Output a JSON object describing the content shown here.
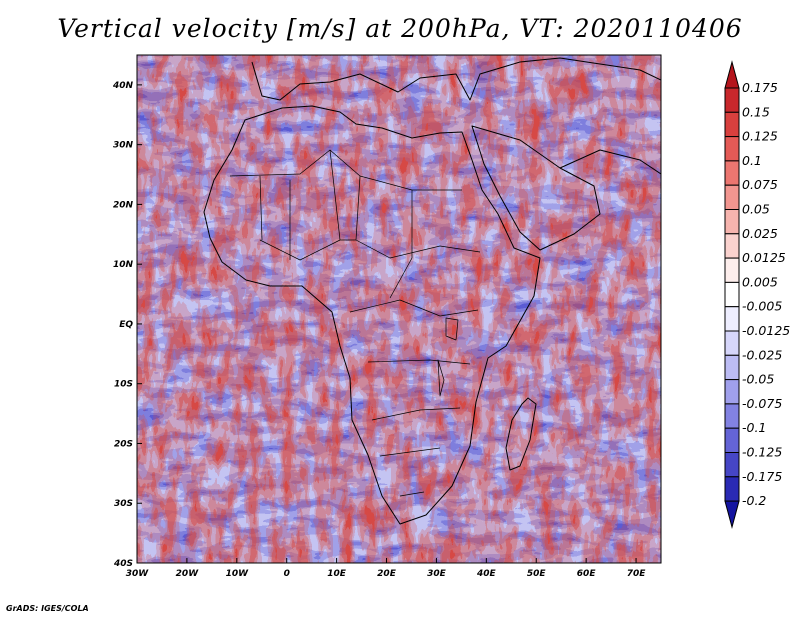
{
  "title": "Vertical velocity [m/s] at 200hPa, VT: 2020110406",
  "credit": "GrADS: IGES/COLA",
  "map": {
    "variable": "Vertical velocity",
    "units": "m/s",
    "level": "200hPa",
    "valid_time": "2020110406",
    "lon_range": [
      -30,
      75
    ],
    "lat_range": [
      -40,
      45
    ],
    "x_tick_values": [
      -30,
      -20,
      -10,
      0,
      10,
      20,
      30,
      40,
      50,
      60,
      70
    ],
    "x_tick_labels": [
      "30W",
      "20W",
      "10W",
      "0",
      "10E",
      "20E",
      "30E",
      "40E",
      "50E",
      "60E",
      "70E"
    ],
    "y_tick_values": [
      40,
      30,
      20,
      10,
      0,
      -10,
      -20,
      -30,
      -40
    ],
    "y_tick_labels": [
      "40N",
      "30N",
      "20N",
      "10N",
      "EQ",
      "10S",
      "20S",
      "30S",
      "40S"
    ]
  },
  "colorbar": {
    "labels": [
      "0.175",
      "0.15",
      "0.125",
      "0.1",
      "0.075",
      "0.05",
      "0.025",
      "0.0125",
      "0.005",
      "-0.005",
      "-0.0125",
      "-0.025",
      "-0.05",
      "-0.075",
      "-0.1",
      "-0.125",
      "-0.175",
      "-0.2"
    ],
    "colors": [
      "#b4141c",
      "#c8282c",
      "#d8403e",
      "#e45a56",
      "#ec7670",
      "#f29690",
      "#f6b4ae",
      "#fad2ce",
      "#fdeeec",
      "#ffffff",
      "#eeeeff",
      "#d6d6fa",
      "#bcbcf4",
      "#a0a0ec",
      "#8282e2",
      "#6464d6",
      "#4646c6",
      "#2a2ab4",
      "#1414a0"
    ]
  }
}
